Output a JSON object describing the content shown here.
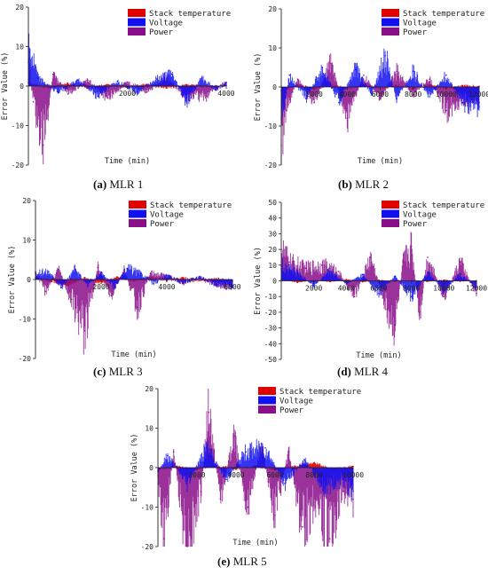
{
  "figure": {
    "legend_entries": [
      "Stack temperature",
      "Voltage",
      "Power"
    ],
    "colors": {
      "Stack temperature": "#e00000",
      "Voltage": "#1010f0",
      "Power": "#8a0e8a"
    }
  },
  "chart_data": [
    {
      "id": "a",
      "type": "line",
      "caption_letter": "(a)",
      "caption_text": "MLR 1",
      "ylabel": "Error Value (%)",
      "xlabel": "Time (min)",
      "ylim": [
        -20,
        20
      ],
      "yticks": [
        -20,
        -10,
        0,
        10,
        20
      ],
      "xlim": [
        0,
        4000
      ],
      "xticks": [
        2000,
        4000
      ],
      "legend_position": "top-right",
      "grid": false,
      "series": [
        {
          "name": "Stack temperature",
          "x": [
            0,
            400,
            800,
            1200,
            1600,
            2000,
            2400,
            2800,
            3200,
            3600,
            4000
          ],
          "values": [
            0.8,
            -0.5,
            0.6,
            -0.4,
            0.3,
            -0.3,
            0.4,
            -0.5,
            0.3,
            -0.2,
            0.2
          ]
        },
        {
          "name": "Voltage",
          "x": [
            0,
            200,
            600,
            1000,
            1400,
            1800,
            2200,
            2600,
            2900,
            3200,
            3500,
            3800,
            4000
          ],
          "values": [
            10,
            2,
            -1.5,
            1.5,
            -2.5,
            1.2,
            -1.5,
            1.8,
            3,
            -4,
            2,
            -1,
            0.8
          ]
        },
        {
          "name": "Power",
          "x": [
            0,
            100,
            300,
            500,
            800,
            1200,
            1600,
            2000,
            2400,
            2800,
            3200,
            3600,
            4000
          ],
          "values": [
            6,
            -4,
            -15,
            3,
            -2,
            1.5,
            -3,
            1,
            -1.5,
            2,
            -3,
            -2.5,
            1
          ]
        }
      ]
    },
    {
      "id": "b",
      "type": "line",
      "caption_letter": "(b)",
      "caption_text": "MLR 2",
      "ylabel": "Error Value (%)",
      "xlabel": "Time (min)",
      "ylim": [
        -20,
        20
      ],
      "yticks": [
        -20,
        -10,
        0,
        10,
        20
      ],
      "xlim": [
        0,
        12000
      ],
      "xticks": [
        2000,
        4000,
        6000,
        8000,
        10000,
        12000
      ],
      "legend_position": "top-right",
      "grid": false,
      "series": [
        {
          "name": "Stack temperature",
          "x": [
            0,
            1000,
            2000,
            3000,
            4000,
            5000,
            6000,
            7000,
            8000,
            9000,
            10000,
            11000,
            12000
          ],
          "values": [
            -1,
            0.5,
            -0.5,
            0.6,
            -0.4,
            0.5,
            -0.3,
            0.4,
            -0.3,
            0.5,
            -0.4,
            0.3,
            0.2
          ]
        },
        {
          "name": "Voltage",
          "x": [
            0,
            500,
            1500,
            2500,
            3500,
            4500,
            5500,
            6300,
            7000,
            8000,
            9000,
            10000,
            11000,
            12000
          ],
          "values": [
            -8,
            3,
            -3,
            5,
            -4,
            4.5,
            -2,
            8,
            -3,
            4,
            -2.5,
            3,
            -4,
            -5
          ]
        },
        {
          "name": "Power",
          "x": [
            0,
            300,
            1000,
            2000,
            3000,
            4000,
            5000,
            6000,
            7000,
            8000,
            9000,
            10000,
            11000,
            12000
          ],
          "values": [
            -15,
            -6,
            2,
            -4,
            6,
            -8,
            3,
            -3,
            4,
            -2,
            2,
            -6,
            -3,
            -4
          ]
        }
      ]
    },
    {
      "id": "c",
      "type": "line",
      "caption_letter": "(c)",
      "caption_text": "MLR 3",
      "ylabel": "Error Value (%)",
      "xlabel": "Time (min)",
      "ylim": [
        -20,
        20
      ],
      "yticks": [
        -20,
        -10,
        0,
        10,
        20
      ],
      "xlim": [
        0,
        6000
      ],
      "xticks": [
        2000,
        4000,
        6000
      ],
      "legend_position": "top-right",
      "grid": false,
      "series": [
        {
          "name": "Stack temperature",
          "x": [
            0,
            500,
            1000,
            1500,
            2000,
            2500,
            3000,
            3500,
            4000,
            4500,
            5000,
            5500,
            6000
          ],
          "values": [
            0.5,
            -0.5,
            -1.5,
            0.5,
            -1,
            0.6,
            -0.4,
            0.5,
            -0.3,
            0.4,
            -0.3,
            0.2,
            -0.2
          ]
        },
        {
          "name": "Voltage",
          "x": [
            0,
            400,
            800,
            1200,
            1600,
            2000,
            2400,
            2800,
            3200,
            3600,
            4000,
            4500,
            5000,
            5500,
            6000
          ],
          "values": [
            1.5,
            2,
            -2,
            2.5,
            -1.5,
            1.8,
            -2,
            2.8,
            1.5,
            -1,
            1,
            -0.8,
            0.8,
            -1.2,
            -1.5
          ]
        },
        {
          "name": "Power",
          "x": [
            0,
            300,
            700,
            1100,
            1500,
            1900,
            2300,
            2700,
            3100,
            3500,
            4000,
            4500,
            5000,
            5500,
            6000
          ],
          "values": [
            2,
            -3,
            2.5,
            -5,
            -13,
            3,
            -4,
            2.5,
            -7,
            1.5,
            1,
            -1,
            0.5,
            -1.5,
            -2
          ]
        }
      ]
    },
    {
      "id": "d",
      "type": "line",
      "caption_letter": "(d)",
      "caption_text": "MLR 4",
      "ylabel": "Error Value (%)",
      "xlabel": "Time (min)",
      "ylim": [
        -50,
        50
      ],
      "yticks": [
        -50,
        -40,
        -30,
        -20,
        -10,
        0,
        10,
        20,
        30,
        40,
        50
      ],
      "xlim": [
        0,
        12000
      ],
      "xticks": [
        2000,
        4000,
        6000,
        8000,
        10000,
        12000
      ],
      "legend_position": "top-right",
      "grid": false,
      "series": [
        {
          "name": "Stack temperature",
          "x": [
            0,
            1000,
            2000,
            3000,
            4000,
            5000,
            6000,
            7000,
            8000,
            9000,
            10000,
            11000,
            12000
          ],
          "values": [
            1,
            -1,
            0.5,
            -0.5,
            0.8,
            -0.6,
            0.4,
            -0.5,
            0.3,
            -0.4,
            0.5,
            -0.3,
            0.2
          ]
        },
        {
          "name": "Voltage",
          "x": [
            0,
            1000,
            2000,
            3000,
            4000,
            5000,
            6000,
            7000,
            8000,
            9000,
            10000,
            11000,
            12000
          ],
          "values": [
            10,
            5,
            -3,
            6,
            -2,
            4,
            -8,
            3,
            -10,
            5,
            -6,
            4,
            -4
          ]
        },
        {
          "name": "Power",
          "x": [
            0,
            500,
            1500,
            2500,
            3500,
            4500,
            5500,
            6500,
            7000,
            7500,
            8000,
            8500,
            9000,
            10000,
            11000,
            12000
          ],
          "values": [
            20,
            12,
            8,
            10,
            6,
            -10,
            15,
            -18,
            -28,
            12,
            22,
            -20,
            15,
            -10,
            12,
            -8
          ]
        }
      ]
    },
    {
      "id": "e",
      "type": "line",
      "caption_letter": "(e)",
      "caption_text": "MLR 5",
      "ylabel": "Error Value (%)",
      "xlabel": "Time (min)",
      "ylim": [
        -20,
        20
      ],
      "yticks": [
        -20,
        -10,
        0,
        10,
        20
      ],
      "xlim": [
        0,
        10000
      ],
      "xticks": [
        2000,
        4000,
        6000,
        8000,
        10000
      ],
      "legend_position": "top-right",
      "grid": false,
      "series": [
        {
          "name": "Stack temperature",
          "x": [
            0,
            1000,
            2000,
            3000,
            4000,
            5000,
            6000,
            7000,
            8000,
            9000,
            10000
          ],
          "values": [
            -0.5,
            0.3,
            -0.4,
            0.5,
            -0.3,
            0.4,
            -0.5,
            0.3,
            1.2,
            -0.4,
            0.3
          ]
        },
        {
          "name": "Voltage",
          "x": [
            0,
            500,
            1500,
            2500,
            3500,
            4500,
            5500,
            6500,
            7500,
            8500,
            9500,
            10000
          ],
          "values": [
            -1,
            3,
            -4,
            5,
            -3,
            4,
            5,
            -4,
            2,
            -5,
            -3,
            -6
          ]
        },
        {
          "name": "Power",
          "x": [
            0,
            300,
            800,
            1500,
            2200,
            2600,
            3200,
            3900,
            4600,
            5300,
            6000,
            6700,
            7400,
            8100,
            8800,
            9500,
            10000
          ],
          "values": [
            -2,
            -18,
            4,
            -20,
            -6,
            14,
            -8,
            8,
            -10,
            6,
            -12,
            4,
            -15,
            -8,
            -18,
            -6,
            -8
          ]
        }
      ]
    }
  ]
}
